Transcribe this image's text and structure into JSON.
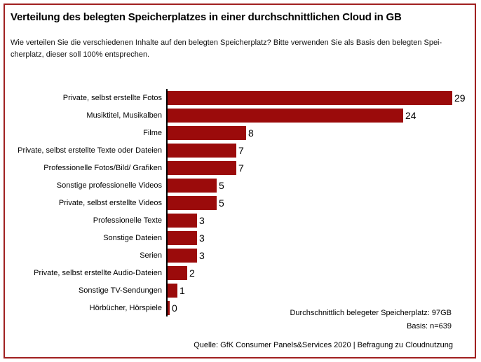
{
  "window": {
    "background": "#FFFFFF",
    "frame_border_color": "#A02020"
  },
  "header": {
    "title": "Verteilung des belegten Speicherplatzes in einer durchschnittlichen Cloud in GB",
    "subtitle_line1": "Wie verteilen Sie die verschiedenen Inhalte auf den belegten Speicherplatz? Bitte verwenden Sie als Basis den belegten Spei-",
    "subtitle_line2": "cherplatz, dieser soll 100% entsprechen."
  },
  "chart_data": {
    "type": "bar",
    "orientation": "horizontal",
    "title": "Verteilung des belegten Speicherplatzes in einer durchschnittlichen Cloud in GB",
    "xlabel": "",
    "ylabel": "",
    "unit": "GB",
    "xlim": [
      0,
      31
    ],
    "grid": false,
    "legend": false,
    "bar_color": "#9B0B0B",
    "axis_color": "#000000",
    "categories": [
      "Private, selbst erstellte Fotos",
      "Musiktitel, Musikalben",
      "Filme",
      "Private, selbst erstellte Texte oder Dateien",
      "Professionelle Fotos/Bild/ Grafiken",
      "Sonstige professionelle Videos",
      "Private, selbst erstellte Videos",
      "Professionelle Texte",
      "Sonstige Dateien",
      "Serien",
      "Private, selbst erstellte Audio-Dateien",
      "Sonstige TV-Sendungen",
      "Hörbücher, Hörspiele"
    ],
    "values": [
      29,
      24,
      8,
      7,
      7,
      5,
      5,
      3,
      3,
      3,
      2,
      1,
      0
    ]
  },
  "annotation": {
    "line1": "Durchschnittlich belegeter Speicherplatz: 97GB",
    "line2": "Basis: n=639"
  },
  "footer": {
    "source": "Quelle: GfK Consumer Panels&Services 2020 | Befragung zu Cloudnutzung"
  }
}
